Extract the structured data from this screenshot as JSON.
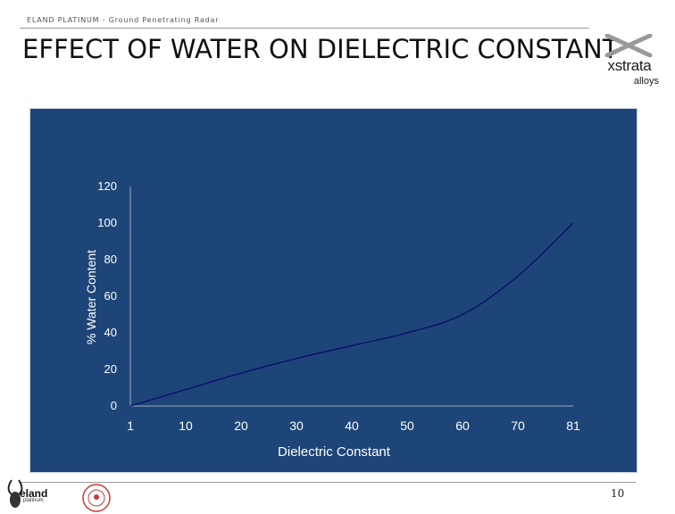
{
  "header": {
    "running_title": "ELAND PLATINUM - Ground Penetrating Radar",
    "slide_title": "EFFECT OF WATER ON DIELECTRIC CONSTANT"
  },
  "logos": {
    "xstrata_word": "xstrata",
    "xstrata_sub": "alloys",
    "eland_word": "eland",
    "eland_sub": "platinum"
  },
  "footer": {
    "page_number": "10"
  },
  "colors": {
    "chart_background": "#1e4577",
    "curve": "#0a0a6e",
    "text": "#ffffff"
  },
  "chart_data": {
    "type": "line",
    "xlabel": "Dielectric Constant",
    "ylabel": "% Water Content",
    "categories": [
      "1",
      "10",
      "20",
      "30",
      "40",
      "50",
      "60",
      "70",
      "81"
    ],
    "y_ticks": [
      "0",
      "20",
      "40",
      "60",
      "80",
      "100",
      "120"
    ],
    "ylim": [
      0,
      120
    ],
    "grid": false,
    "series": [
      {
        "values": [
          0,
          9,
          18,
          26,
          33,
          40,
          50,
          71,
          100
        ]
      }
    ]
  }
}
